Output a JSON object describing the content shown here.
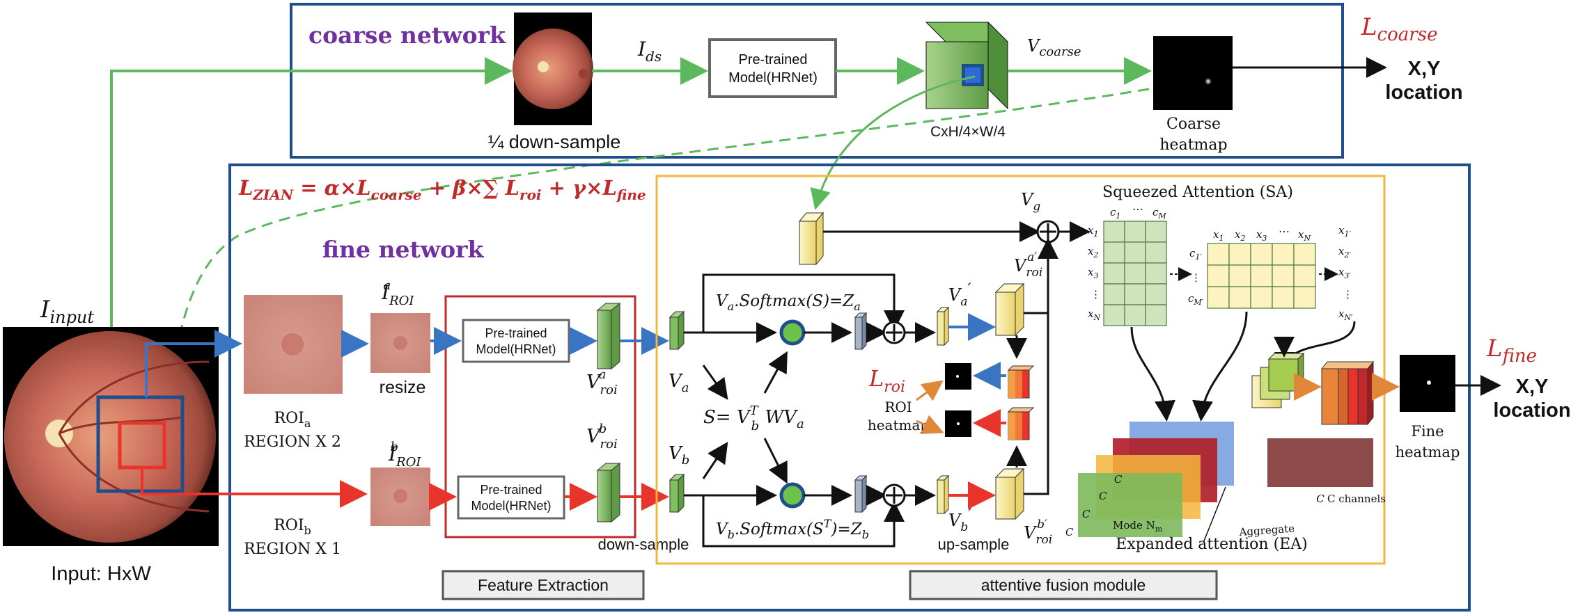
{
  "title_text": "",
  "coarse": {
    "label": "coarse network",
    "ids": "I",
    "ids_sub": "ds",
    "pretrained": [
      "Pre-trained",
      "Model(HRNet)"
    ],
    "vcoarse": "V",
    "vcoarse_sub": "coarse",
    "downsample": "¼ down-sample",
    "feat_dims": "CxH/4×W/4",
    "heatmap": [
      "Coarse",
      "heatmap"
    ],
    "loss": "L",
    "loss_sub": "coarse",
    "output": [
      "X,Y",
      "location"
    ]
  },
  "input": {
    "label": "I",
    "label_sub": "input",
    "caption": "Input: HxW"
  },
  "fine": {
    "label": "fine network",
    "zian_loss": "L",
    "zian_sub": "ZIAN",
    "zian_rest_1": " = α×L",
    "zian_sub2": "coarse",
    "zian_rest_2": " + β×∑ L",
    "zian_sub3": "roi",
    "zian_rest_3": " + γ×L",
    "zian_sub4": "fine",
    "roi_a": [
      "ROI",
      "a",
      "REGION X 2"
    ],
    "roi_b": [
      "ROI",
      "b",
      "REGION X 1"
    ],
    "iroi_a": [
      "I",
      "ROI",
      "a"
    ],
    "iroi_b": [
      "I",
      "ROI",
      "b"
    ],
    "resize": "resize",
    "pretrained": [
      "Pre-trained",
      "Model(HRNet)"
    ],
    "vroi_a": [
      "V",
      "roi",
      "a"
    ],
    "vroi_b": [
      "V",
      "roi",
      "b"
    ],
    "downsample": "down-sample",
    "upsample": "up-sample",
    "feature_extraction": "Feature Extraction",
    "attentive_fusion": "attentive fusion module",
    "va": [
      "V",
      "a"
    ],
    "vb": [
      "V",
      "b"
    ],
    "s_eq": [
      "S= V",
      "T",
      "b",
      " WV",
      "a"
    ],
    "za_eq": "V",
    "za_full": ".Softmax(S)=Z",
    "zb_full": ".Softmax(S",
    "zb_tail": ")=Z",
    "vg": [
      "V",
      "g"
    ],
    "va_prime": [
      "V",
      "a",
      "′"
    ],
    "vb_prime": [
      "V",
      "b",
      "′"
    ],
    "vroi_a_prime": [
      "V",
      "roi",
      "a′"
    ],
    "vroi_b_prime": [
      "V",
      "roi",
      "b′"
    ],
    "lroi": [
      "L",
      "roi"
    ],
    "roi_heatmap": [
      "ROI",
      "heatmap"
    ],
    "sa_title": "Squeezed Attention (SA)",
    "ea_title": "Expanded attention (EA)",
    "grid1_cols": [
      "c",
      "1",
      "⋯",
      "c",
      "M"
    ],
    "grid1_rows": [
      "x",
      "1",
      "x",
      "2",
      "x",
      "3",
      "⋮",
      "x",
      "N"
    ],
    "grid2_cols": [
      "x",
      "1",
      "x",
      "2",
      "x",
      "3",
      "⋯",
      "x",
      "N"
    ],
    "grid2_rows": [
      "c",
      "1′",
      "⋮",
      "c",
      "M′"
    ],
    "xprime": [
      "x",
      "1′",
      "x",
      "2′",
      "x",
      "3′",
      "⋮",
      "x",
      "N′"
    ],
    "ea_c": "C",
    "ea_mode": "Mode N",
    "ea_mode_sub": "m",
    "ea_aggregate": "Aggregate",
    "ea_channels": "C channels",
    "fine_heatmap": [
      "Fine",
      "heatmap"
    ],
    "loss": "L",
    "loss_sub": "fine",
    "output": [
      "X,Y",
      "location"
    ]
  },
  "colors": {
    "frame_blue": "#1f4e8c",
    "frame_yellow": "#f2b63c",
    "frame_red": "#c0282a",
    "arrow_green": "#5cb85c",
    "arrow_blue": "#3a75c4",
    "arrow_red": "#e8342a",
    "arrow_orange": "#e0873a",
    "purple": "#7030a0",
    "loss_red": "#c0282a"
  }
}
